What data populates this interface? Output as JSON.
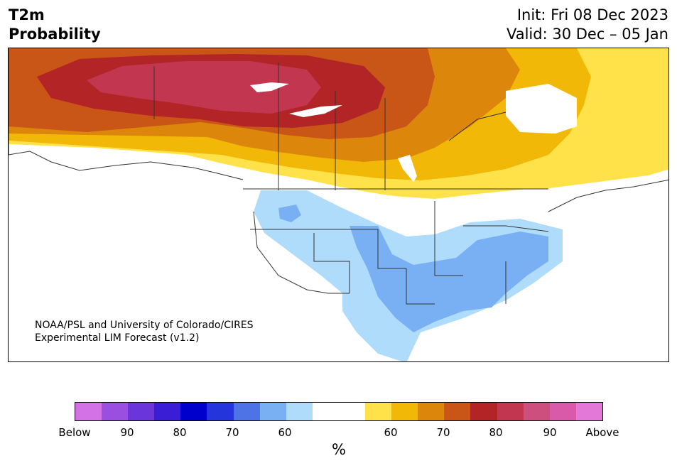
{
  "title": {
    "line1": "T2m",
    "line2": "Probability"
  },
  "init": "Init: Fri 08 Dec 2023",
  "valid": "Valid: 30 Dec – 05 Jan",
  "credit": {
    "line1": "NOAA/PSL and University of Colorado/CIRES",
    "line2": "Experimental LIM Forecast (v1.2)"
  },
  "colorbar": {
    "colors": [
      "#d371e6",
      "#9a4fe0",
      "#6a36d9",
      "#3a1ed6",
      "#0000cc",
      "#2436db",
      "#4e73e6",
      "#78b0f3",
      "#b0dcfc",
      "#ffffff",
      "#ffffff",
      "#ffe24a",
      "#f2b807",
      "#dd860c",
      "#c95516",
      "#b22426",
      "#c23650",
      "#cc4f7e",
      "#d95aa8",
      "#e478d9"
    ],
    "ticks": [
      "Below",
      "90",
      "80",
      "70",
      "60",
      "60",
      "70",
      "80",
      "90",
      "Above"
    ],
    "unit": "%"
  },
  "legend_map": {
    "below_60": "#b0dcfc",
    "below_70": "#78b0f3",
    "above_60": "#ffe24a",
    "above_65": "#f2b807",
    "above_70": "#dd860c",
    "above_75": "#c95516",
    "above_80": "#b22426",
    "above_85": "#c23650"
  }
}
